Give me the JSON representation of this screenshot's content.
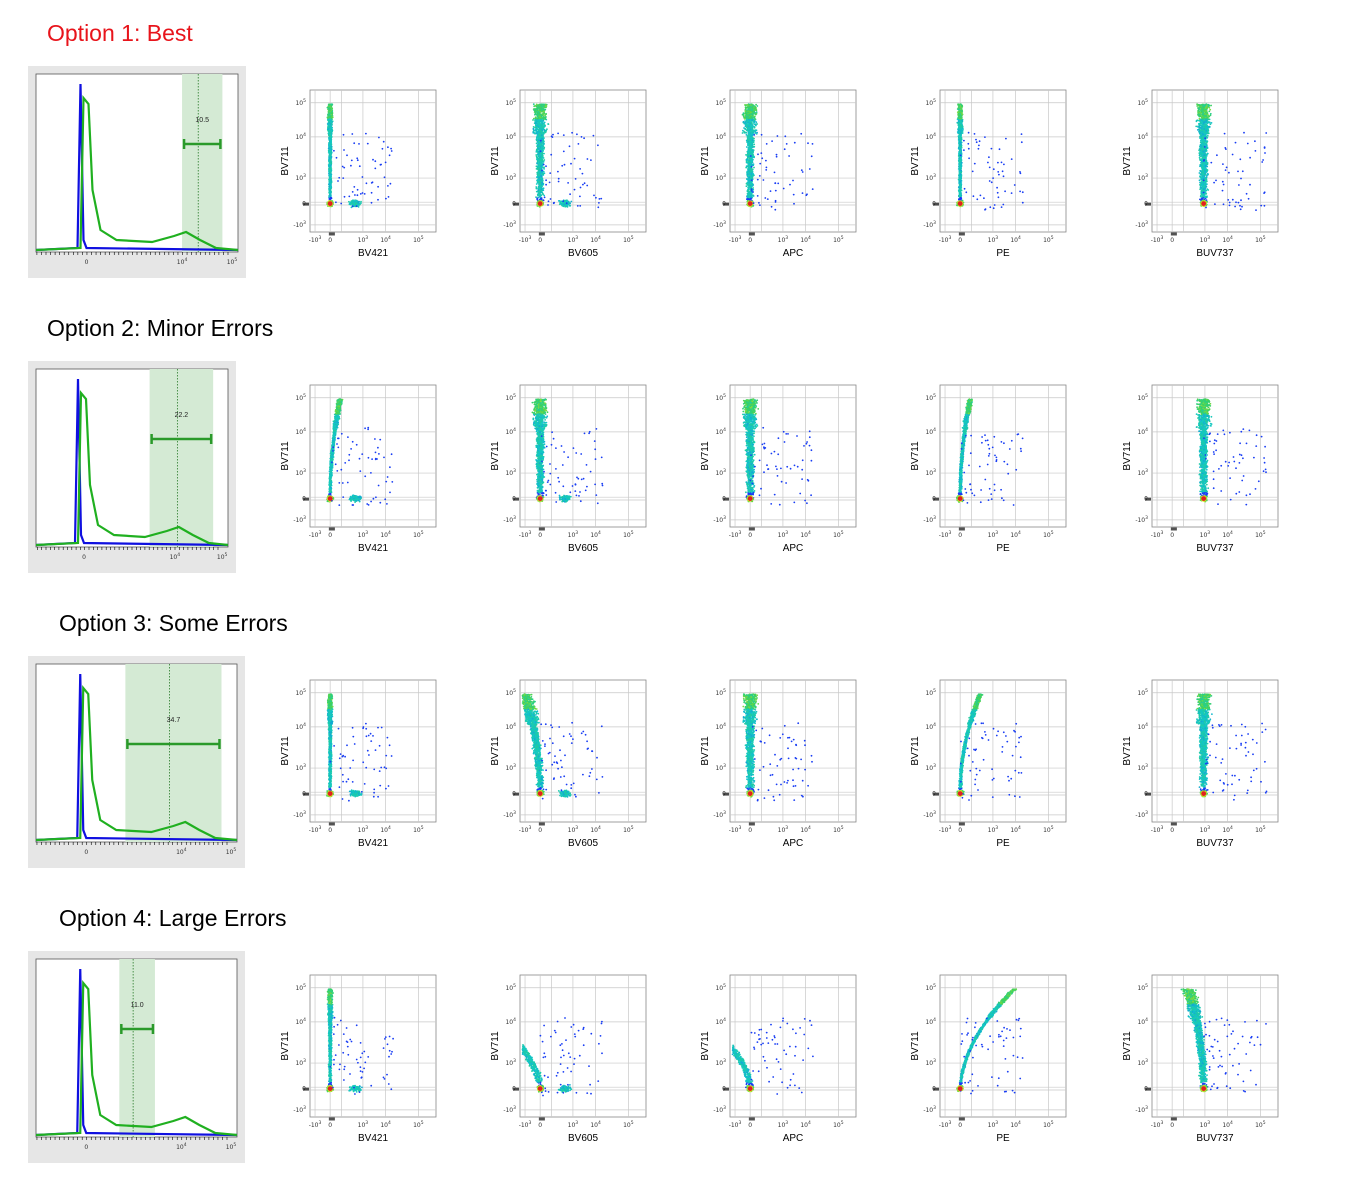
{
  "chart_data": [
    {
      "row": 1,
      "title": "Option 1: Best",
      "title_color": "#e8141b",
      "histogram": {
        "type": "histogram",
        "gate_value": "10.5",
        "gate_range": [
          10000,
          60000
        ],
        "x_ticks": [
          "0",
          "10^4",
          "10^5"
        ],
        "series_colors": [
          "#1010e0",
          "#20b020"
        ]
      },
      "dot_plots": [
        {
          "type": "scatter",
          "xlabel": "BV421",
          "ylabel": "BV711",
          "spread": "none"
        },
        {
          "type": "scatter",
          "xlabel": "BV605",
          "ylabel": "BV711",
          "spread": "none"
        },
        {
          "type": "scatter",
          "xlabel": "APC",
          "ylabel": "BV711",
          "spread": "none"
        },
        {
          "type": "scatter",
          "xlabel": "PE",
          "ylabel": "BV711",
          "spread": "none"
        },
        {
          "type": "scatter",
          "xlabel": "BUV737",
          "ylabel": "BV711",
          "spread": "none"
        }
      ]
    },
    {
      "row": 2,
      "title": "Option 2: Minor Errors",
      "title_color": "#000000",
      "histogram": {
        "type": "histogram",
        "gate_value": "22.2",
        "gate_range": [
          3000,
          60000
        ],
        "x_ticks": [
          "0",
          "10^4",
          "10^5"
        ],
        "series_colors": [
          "#1010e0",
          "#20b020"
        ]
      },
      "dot_plots": [
        {
          "type": "scatter",
          "xlabel": "BV421",
          "ylabel": "BV711",
          "spread": "minor-right"
        },
        {
          "type": "scatter",
          "xlabel": "BV605",
          "ylabel": "BV711",
          "spread": "none"
        },
        {
          "type": "scatter",
          "xlabel": "APC",
          "ylabel": "BV711",
          "spread": "none"
        },
        {
          "type": "scatter",
          "xlabel": "PE",
          "ylabel": "BV711",
          "spread": "minor-right"
        },
        {
          "type": "scatter",
          "xlabel": "BUV737",
          "ylabel": "BV711",
          "spread": "none"
        }
      ]
    },
    {
      "row": 3,
      "title": "Option 3: Some Errors",
      "title_color": "#000000",
      "histogram": {
        "type": "histogram",
        "gate_value": "34.7",
        "gate_range": [
          700,
          60000
        ],
        "x_ticks": [
          "0",
          "10^4",
          "10^5"
        ],
        "series_colors": [
          "#1010e0",
          "#20b020"
        ]
      },
      "dot_plots": [
        {
          "type": "scatter",
          "xlabel": "BV421",
          "ylabel": "BV711",
          "spread": "none"
        },
        {
          "type": "scatter",
          "xlabel": "BV605",
          "ylabel": "BV711",
          "spread": "left"
        },
        {
          "type": "scatter",
          "xlabel": "APC",
          "ylabel": "BV711",
          "spread": "none"
        },
        {
          "type": "scatter",
          "xlabel": "PE",
          "ylabel": "BV711",
          "spread": "right"
        },
        {
          "type": "scatter",
          "xlabel": "BUV737",
          "ylabel": "BV711",
          "spread": "none"
        }
      ]
    },
    {
      "row": 4,
      "title": "Option 4: Large Errors",
      "title_color": "#000000",
      "histogram": {
        "type": "histogram",
        "gate_value": "11.0",
        "gate_range": [
          500,
          3000
        ],
        "x_ticks": [
          "0",
          "10^4",
          "10^5"
        ],
        "series_colors": [
          "#1010e0",
          "#20b020"
        ]
      },
      "dot_plots": [
        {
          "type": "scatter",
          "xlabel": "BV421",
          "ylabel": "BV711",
          "spread": "none"
        },
        {
          "type": "scatter",
          "xlabel": "BV605",
          "ylabel": "BV711",
          "spread": "large-left"
        },
        {
          "type": "scatter",
          "xlabel": "APC",
          "ylabel": "BV711",
          "spread": "large-left"
        },
        {
          "type": "scatter",
          "xlabel": "PE",
          "ylabel": "BV711",
          "spread": "large-right"
        },
        {
          "type": "scatter",
          "xlabel": "BUV737",
          "ylabel": "BV711",
          "spread": "left"
        }
      ]
    }
  ],
  "axis_tick_labels": {
    "y": [
      "10^5",
      "10^4",
      "10^3",
      "0",
      "-10^3"
    ],
    "x": [
      "-10^3",
      "0",
      "10^3",
      "10^4",
      "10^5"
    ]
  },
  "colors": {
    "density_low": "#1a1aff",
    "density_mid": "#12c8c8",
    "density_high": "#f2e81a",
    "density_peak": "#e02020",
    "gate_fill": "#d4ead4",
    "gate_bar": "#2a9a2a"
  }
}
